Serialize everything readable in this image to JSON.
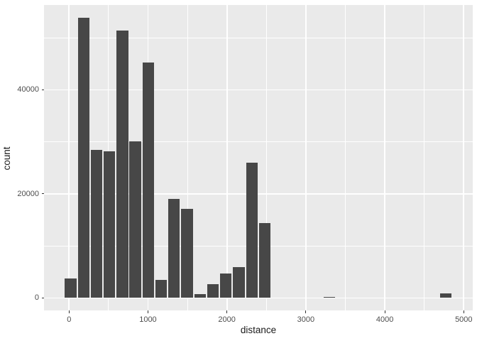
{
  "figure": {
    "background": "#FFFFFF",
    "panel_background": "#EAEAEA",
    "grid_color": "#FFFFFF",
    "bar_color": "#474747",
    "tick_label_color": "#4D4D4D",
    "axis_title_color": "#1A1A1A",
    "tick_mark_color": "#333333"
  },
  "chart_data": {
    "type": "bar",
    "subtype": "histogram",
    "title": "",
    "xlabel": "distance",
    "ylabel": "count",
    "legend": "none",
    "grid": "on",
    "x_major_ticks": [
      0,
      1000,
      2000,
      3000,
      4000,
      5000
    ],
    "x_minor_ticks": [
      500,
      1500,
      2500,
      3500,
      4500
    ],
    "y_major_ticks": [
      0,
      20000,
      40000
    ],
    "y_minor_ticks": [
      10000,
      30000,
      50000
    ],
    "xlim": [
      -317,
      5114
    ],
    "ylim": [
      -2390,
      56300
    ],
    "binwidth": 164,
    "bar_visual_width": 147,
    "bins": [
      {
        "x": 20,
        "count": 3800
      },
      {
        "x": 184,
        "count": 53900
      },
      {
        "x": 348,
        "count": 28500
      },
      {
        "x": 512,
        "count": 28200
      },
      {
        "x": 676,
        "count": 51400
      },
      {
        "x": 840,
        "count": 30100
      },
      {
        "x": 1004,
        "count": 45200
      },
      {
        "x": 1168,
        "count": 3500
      },
      {
        "x": 1331,
        "count": 19000
      },
      {
        "x": 1495,
        "count": 17100
      },
      {
        "x": 1659,
        "count": 800
      },
      {
        "x": 1823,
        "count": 2700
      },
      {
        "x": 1987,
        "count": 4700
      },
      {
        "x": 2151,
        "count": 6000
      },
      {
        "x": 2315,
        "count": 26000
      },
      {
        "x": 2479,
        "count": 14400
      },
      {
        "x": 3298,
        "count": 250
      },
      {
        "x": 4772,
        "count": 900
      }
    ]
  }
}
